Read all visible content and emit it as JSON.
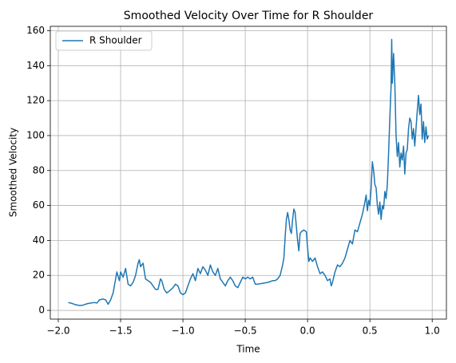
{
  "chart_data": {
    "type": "line",
    "title": "Smoothed Velocity Over Time for R Shoulder",
    "xlabel": "Time",
    "ylabel": "Smoothed Velocity",
    "x": [
      -1.92,
      -1.89,
      -1.86,
      -1.83,
      -1.8,
      -1.77,
      -1.74,
      -1.71,
      -1.69,
      -1.67,
      -1.64,
      -1.62,
      -1.6,
      -1.58,
      -1.56,
      -1.54,
      -1.53,
      -1.51,
      -1.5,
      -1.48,
      -1.46,
      -1.44,
      -1.42,
      -1.4,
      -1.38,
      -1.36,
      -1.35,
      -1.34,
      -1.32,
      -1.3,
      -1.28,
      -1.26,
      -1.24,
      -1.22,
      -1.2,
      -1.18,
      -1.17,
      -1.15,
      -1.13,
      -1.11,
      -1.08,
      -1.06,
      -1.04,
      -1.02,
      -1.0,
      -0.98,
      -0.96,
      -0.94,
      -0.92,
      -0.9,
      -0.88,
      -0.86,
      -0.84,
      -0.82,
      -0.8,
      -0.78,
      -0.76,
      -0.74,
      -0.72,
      -0.7,
      -0.68,
      -0.66,
      -0.64,
      -0.62,
      -0.6,
      -0.58,
      -0.56,
      -0.54,
      -0.52,
      -0.5,
      -0.48,
      -0.46,
      -0.44,
      -0.42,
      -0.4,
      -0.36,
      -0.32,
      -0.28,
      -0.26,
      -0.24,
      -0.22,
      -0.2,
      -0.19,
      -0.18,
      -0.17,
      -0.16,
      -0.15,
      -0.14,
      -0.13,
      -0.12,
      -0.11,
      -0.1,
      -0.09,
      -0.08,
      -0.07,
      -0.06,
      -0.05,
      -0.03,
      -0.01,
      0.0,
      0.01,
      0.02,
      0.04,
      0.06,
      0.08,
      0.1,
      0.12,
      0.14,
      0.16,
      0.18,
      0.19,
      0.2,
      0.22,
      0.24,
      0.26,
      0.28,
      0.3,
      0.32,
      0.34,
      0.36,
      0.38,
      0.4,
      0.42,
      0.44,
      0.46,
      0.47,
      0.48,
      0.49,
      0.5,
      0.51,
      0.52,
      0.53,
      0.54,
      0.55,
      0.56,
      0.57,
      0.58,
      0.59,
      0.6,
      0.61,
      0.62,
      0.63,
      0.64,
      0.65,
      0.66,
      0.67,
      0.675,
      0.68,
      0.69,
      0.7,
      0.71,
      0.72,
      0.73,
      0.74,
      0.75,
      0.76,
      0.77,
      0.78,
      0.79,
      0.8,
      0.81,
      0.82,
      0.83,
      0.84,
      0.85,
      0.86,
      0.87,
      0.88,
      0.89,
      0.9,
      0.91,
      0.92,
      0.93,
      0.94,
      0.95,
      0.96,
      0.97
    ],
    "series": [
      {
        "name": "R Shoulder",
        "color": "#1f77b4",
        "values": [
          4.5,
          4,
          3.2,
          2.8,
          3,
          3.8,
          4.2,
          4.5,
          4.2,
          6,
          6.5,
          6,
          3.5,
          6,
          10,
          18,
          22,
          17,
          22,
          19,
          24,
          15,
          14,
          16,
          20,
          27,
          29,
          25,
          27,
          18,
          17,
          16,
          14,
          12,
          12,
          18,
          17,
          12,
          10,
          11,
          13,
          15,
          14,
          10,
          9,
          10,
          14,
          18,
          21,
          17,
          24,
          21,
          25,
          23,
          20,
          26,
          22,
          20,
          24,
          18,
          16,
          14,
          17,
          19,
          17,
          14,
          13,
          16,
          19,
          18,
          19,
          18,
          19,
          15,
          15,
          15.5,
          16,
          17,
          17,
          18,
          20,
          26,
          30,
          42,
          52,
          56,
          52,
          46,
          44,
          52,
          58,
          56,
          48,
          40,
          34,
          44,
          45,
          46,
          45,
          36,
          28,
          30,
          28,
          30,
          25,
          21,
          22,
          20,
          17,
          18,
          14,
          16,
          22,
          26,
          25,
          27,
          30,
          35,
          40,
          38,
          46,
          45,
          50,
          55,
          62,
          66,
          57,
          63,
          60,
          70,
          85,
          80,
          72,
          70,
          60,
          55,
          62,
          52,
          60,
          58,
          68,
          64,
          72,
          90,
          110,
          128,
          155,
          130,
          147,
          130,
          100,
          88,
          96,
          82,
          90,
          86,
          94,
          78,
          90,
          92,
          104,
          110,
          108,
          98,
          104,
          94,
          104,
          114,
          123,
          112,
          118,
          98,
          108,
          96,
          105,
          98,
          100
        ]
      }
    ],
    "xlim": [
      -2.064,
      1.114
    ],
    "ylim": [
      -5,
      162.5
    ],
    "xticks": [
      {
        "value": -2.0,
        "label": "−2.0"
      },
      {
        "value": -1.5,
        "label": "−1.5"
      },
      {
        "value": -1.0,
        "label": "−1.0"
      },
      {
        "value": -0.5,
        "label": "−0.5"
      },
      {
        "value": 0.0,
        "label": "0.0"
      },
      {
        "value": 0.5,
        "label": "0.5"
      },
      {
        "value": 1.0,
        "label": "1.0"
      }
    ],
    "yticks": [
      0,
      20,
      40,
      60,
      80,
      100,
      120,
      140,
      160
    ],
    "grid": true,
    "legend": "upper left"
  }
}
